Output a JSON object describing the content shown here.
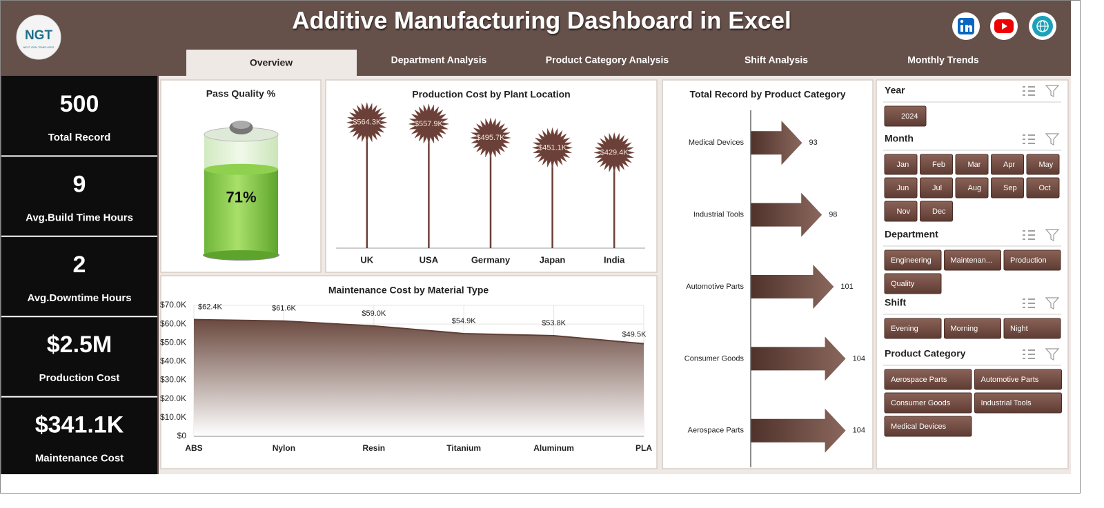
{
  "header": {
    "title": "Additive Manufacturing Dashboard in Excel"
  },
  "logo": {
    "text": "NGT",
    "subtitle": "NEXT GEN TEMPLATES"
  },
  "tabs": [
    "Overview",
    "Department Analysis",
    "Product Category Analysis",
    "Shift Analysis",
    "Monthly Trends"
  ],
  "kpis": [
    {
      "value": "500",
      "label": "Total Record"
    },
    {
      "value": "9",
      "label": "Avg.Build Time Hours"
    },
    {
      "value": "2",
      "label": "Avg.Downtime Hours"
    },
    {
      "value": "$2.5M",
      "label": "Production Cost"
    },
    {
      "value": "$341.1K",
      "label": "Maintenance Cost"
    }
  ],
  "chart_data": [
    {
      "type": "battery",
      "title": "Pass Quality %",
      "values": [
        71
      ],
      "value_labels": [
        "71%"
      ],
      "ylim": [
        0,
        100
      ],
      "color": "#8fd14f"
    },
    {
      "type": "lollipop",
      "title": "Production Cost by Plant Location",
      "categories": [
        "UK",
        "USA",
        "Germany",
        "Japan",
        "India"
      ],
      "values": [
        564300,
        557900,
        495700,
        451100,
        429400
      ],
      "value_labels": [
        "$564.3K",
        "$557.9K",
        "$495.7K",
        "$451.1K",
        "$429.4K"
      ],
      "ylim": [
        0,
        700000
      ],
      "color": "#6b4038"
    },
    {
      "type": "area",
      "title": "Maintenance Cost by Material Type",
      "categories": [
        "ABS",
        "Nylon",
        "Resin",
        "Titanium",
        "Aluminum",
        "PLA"
      ],
      "values": [
        62400,
        61600,
        59000,
        54900,
        53800,
        49500
      ],
      "value_labels": [
        "$62.4K",
        "$61.6K",
        "$59.0K",
        "$54.9K",
        "$53.8K",
        "$49.5K"
      ],
      "ylim": [
        0,
        70000
      ],
      "yticks": [
        {
          "value": 0,
          "label": "$0"
        },
        {
          "value": 10000,
          "label": "$10.0K"
        },
        {
          "value": 20000,
          "label": "$20.0K"
        },
        {
          "value": 30000,
          "label": "$30.0K"
        },
        {
          "value": 40000,
          "label": "$40.0K"
        },
        {
          "value": 50000,
          "label": "$50.0K"
        },
        {
          "value": 60000,
          "label": "$60.0K"
        },
        {
          "value": 70000,
          "label": "$70.0K"
        }
      ],
      "grid": true,
      "color": "#5e3f36"
    },
    {
      "type": "arrow-bar",
      "title": "Total Record by Product Category",
      "categories": [
        "Medical Devices",
        "Industrial Tools",
        "Automotive Parts",
        "Consumer Goods",
        "Aerospace Parts"
      ],
      "values": [
        93,
        98,
        101,
        104,
        104
      ],
      "xlim": [
        80,
        110
      ],
      "color": "#6b4038"
    }
  ],
  "slicers": [
    {
      "title": "Year",
      "items": [
        "2024"
      ]
    },
    {
      "title": "Month",
      "items": [
        "Jan",
        "Feb",
        "Mar",
        "Apr",
        "May",
        "Jun",
        "Jul",
        "Aug",
        "Sep",
        "Oct",
        "Nov",
        "Dec"
      ]
    },
    {
      "title": "Department",
      "items": [
        "Engineering",
        "Maintenan...",
        "Production",
        "Quality"
      ]
    },
    {
      "title": "Shift",
      "items": [
        "Evening",
        "Morning",
        "Night"
      ]
    },
    {
      "title": "Product Category",
      "items": [
        "Aerospace Parts",
        "Automotive Parts",
        "Consumer Goods",
        "Industrial Tools",
        "Medical Devices"
      ]
    }
  ]
}
